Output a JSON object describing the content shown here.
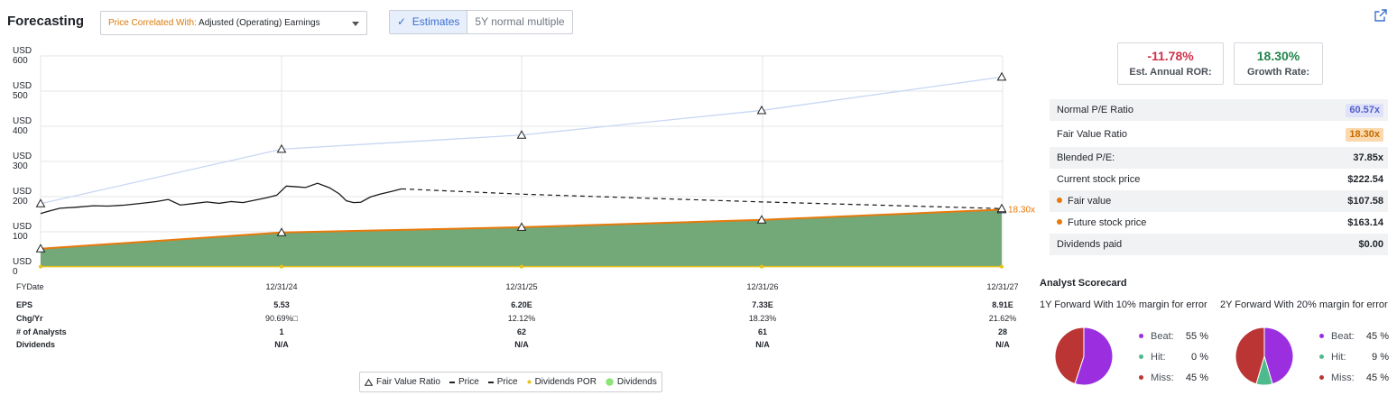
{
  "header": {
    "title": "Forecasting",
    "correlated_prefix": "Price Correlated With:",
    "correlated_value": "Adjusted (Operating) Earnings",
    "toggle_estimates": "Estimates",
    "toggle_multiple": "5Y normal multiple"
  },
  "metrics": {
    "ror_value": "-11.78%",
    "ror_label": "Est. Annual ROR:",
    "growth_value": "18.30%",
    "growth_label": "Growth Rate:"
  },
  "stats": [
    {
      "label": "Normal P/E Ratio",
      "value": "60.57x"
    },
    {
      "label": "Fair Value Ratio",
      "value": "18.30x"
    },
    {
      "label": "Blended P/E:",
      "value": "37.85x"
    },
    {
      "label": "Current stock price",
      "value": "$222.54"
    },
    {
      "label": "Fair value",
      "value": "$107.58"
    },
    {
      "label": "Future stock price",
      "value": "$163.14"
    },
    {
      "label": "Dividends paid",
      "value": "$0.00"
    }
  ],
  "chart_data": {
    "type": "area",
    "y_unit": "USD",
    "ylim": [
      0,
      600
    ],
    "y_ticks": [
      "600",
      "500",
      "400",
      "300",
      "200",
      "100",
      "0"
    ],
    "x_label": "FYDate",
    "x_categories": [
      "12/31/24",
      "12/31/25",
      "12/31/26",
      "12/31/27"
    ],
    "end_label": "18.30x",
    "grid": true,
    "series": [
      {
        "name": "Fair Value Ratio",
        "points": [
          [
            -1.0,
            180
          ],
          [
            0,
            335
          ],
          [
            1,
            375
          ],
          [
            2,
            445
          ],
          [
            3,
            540
          ]
        ]
      },
      {
        "name": "Price",
        "points": [
          [
            -1.0,
            152
          ],
          [
            -0.97,
            158
          ],
          [
            -0.92,
            167
          ],
          [
            -0.85,
            170
          ],
          [
            -0.78,
            174
          ],
          [
            -0.72,
            173
          ],
          [
            -0.65,
            176
          ],
          [
            -0.58,
            181
          ],
          [
            -0.52,
            186
          ],
          [
            -0.47,
            192
          ],
          [
            -0.42,
            176
          ],
          [
            -0.37,
            180
          ],
          [
            -0.31,
            185
          ],
          [
            -0.26,
            181
          ],
          [
            -0.21,
            186
          ],
          [
            -0.16,
            183
          ],
          [
            -0.11,
            190
          ],
          [
            -0.06,
            197
          ],
          [
            -0.02,
            204
          ],
          [
            0.02,
            230
          ],
          [
            0.06,
            228
          ],
          [
            0.1,
            226
          ],
          [
            0.15,
            238
          ],
          [
            0.2,
            225
          ],
          [
            0.24,
            208
          ],
          [
            0.27,
            188
          ],
          [
            0.3,
            183
          ],
          [
            0.33,
            184
          ],
          [
            0.37,
            199
          ],
          [
            0.41,
            207
          ],
          [
            0.46,
            215
          ],
          [
            0.5,
            222
          ]
        ]
      },
      {
        "name": "Price",
        "points": [
          [
            0.5,
            222
          ],
          [
            1,
            207
          ],
          [
            2,
            185
          ],
          [
            3,
            166
          ]
        ]
      },
      {
        "name": "Dividends POR",
        "points": [
          [
            -1.0,
            1
          ],
          [
            0,
            1
          ],
          [
            1,
            1
          ],
          [
            2,
            1
          ],
          [
            3,
            1
          ]
        ]
      },
      {
        "name": "Dividends",
        "points": [
          [
            -1.0,
            52
          ],
          [
            0,
            98
          ],
          [
            1,
            113
          ],
          [
            2,
            134
          ],
          [
            3,
            163
          ]
        ]
      }
    ],
    "table": {
      "row_labels": [
        "EPS",
        "Chg/Yr",
        "# of Analysts",
        "Dividends"
      ],
      "columns": [
        {
          "eps": "5.53",
          "chg": "90.69%□",
          "analysts": "1",
          "dividends": "N/A"
        },
        {
          "eps": "6.20E",
          "chg": "12.12%",
          "analysts": "62",
          "dividends": "N/A"
        },
        {
          "eps": "7.33E",
          "chg": "18.23%",
          "analysts": "61",
          "dividends": "N/A"
        },
        {
          "eps": "8.91E",
          "chg": "21.62%",
          "analysts": "28",
          "dividends": "N/A"
        }
      ]
    }
  },
  "legend": [
    "Fair Value Ratio",
    "Price",
    "Price",
    "Dividends POR",
    "Dividends"
  ],
  "scorecard": {
    "title": "Analyst Scorecard",
    "panels": [
      {
        "label": "1Y Forward With 10% margin for error",
        "beat": 55,
        "hit": 0,
        "miss": 45
      },
      {
        "label": "2Y Forward With 20% margin for error",
        "beat": 45,
        "hit": 9,
        "miss": 45
      }
    ],
    "labels": {
      "beat": "Beat:",
      "hit": "Hit:",
      "miss": "Miss:"
    },
    "colors": {
      "beat": "#9b2fe0",
      "hit": "#4dbb8b",
      "miss": "#bb3535"
    }
  },
  "colors": {
    "fair_line": "#c7d6f3",
    "price_line": "#1a1a1a",
    "area_fill": "#73a878",
    "area_edge": "#e8790b",
    "por_line": "#e5c31d",
    "negative": "#d1314b",
    "positive": "#22844c",
    "normal_pe_bg": "#dfe2fa",
    "normal_pe_fg": "#5560c8",
    "fair_ratio_bg": "#fbd9ad",
    "fair_ratio_fg": "#c46a00"
  }
}
